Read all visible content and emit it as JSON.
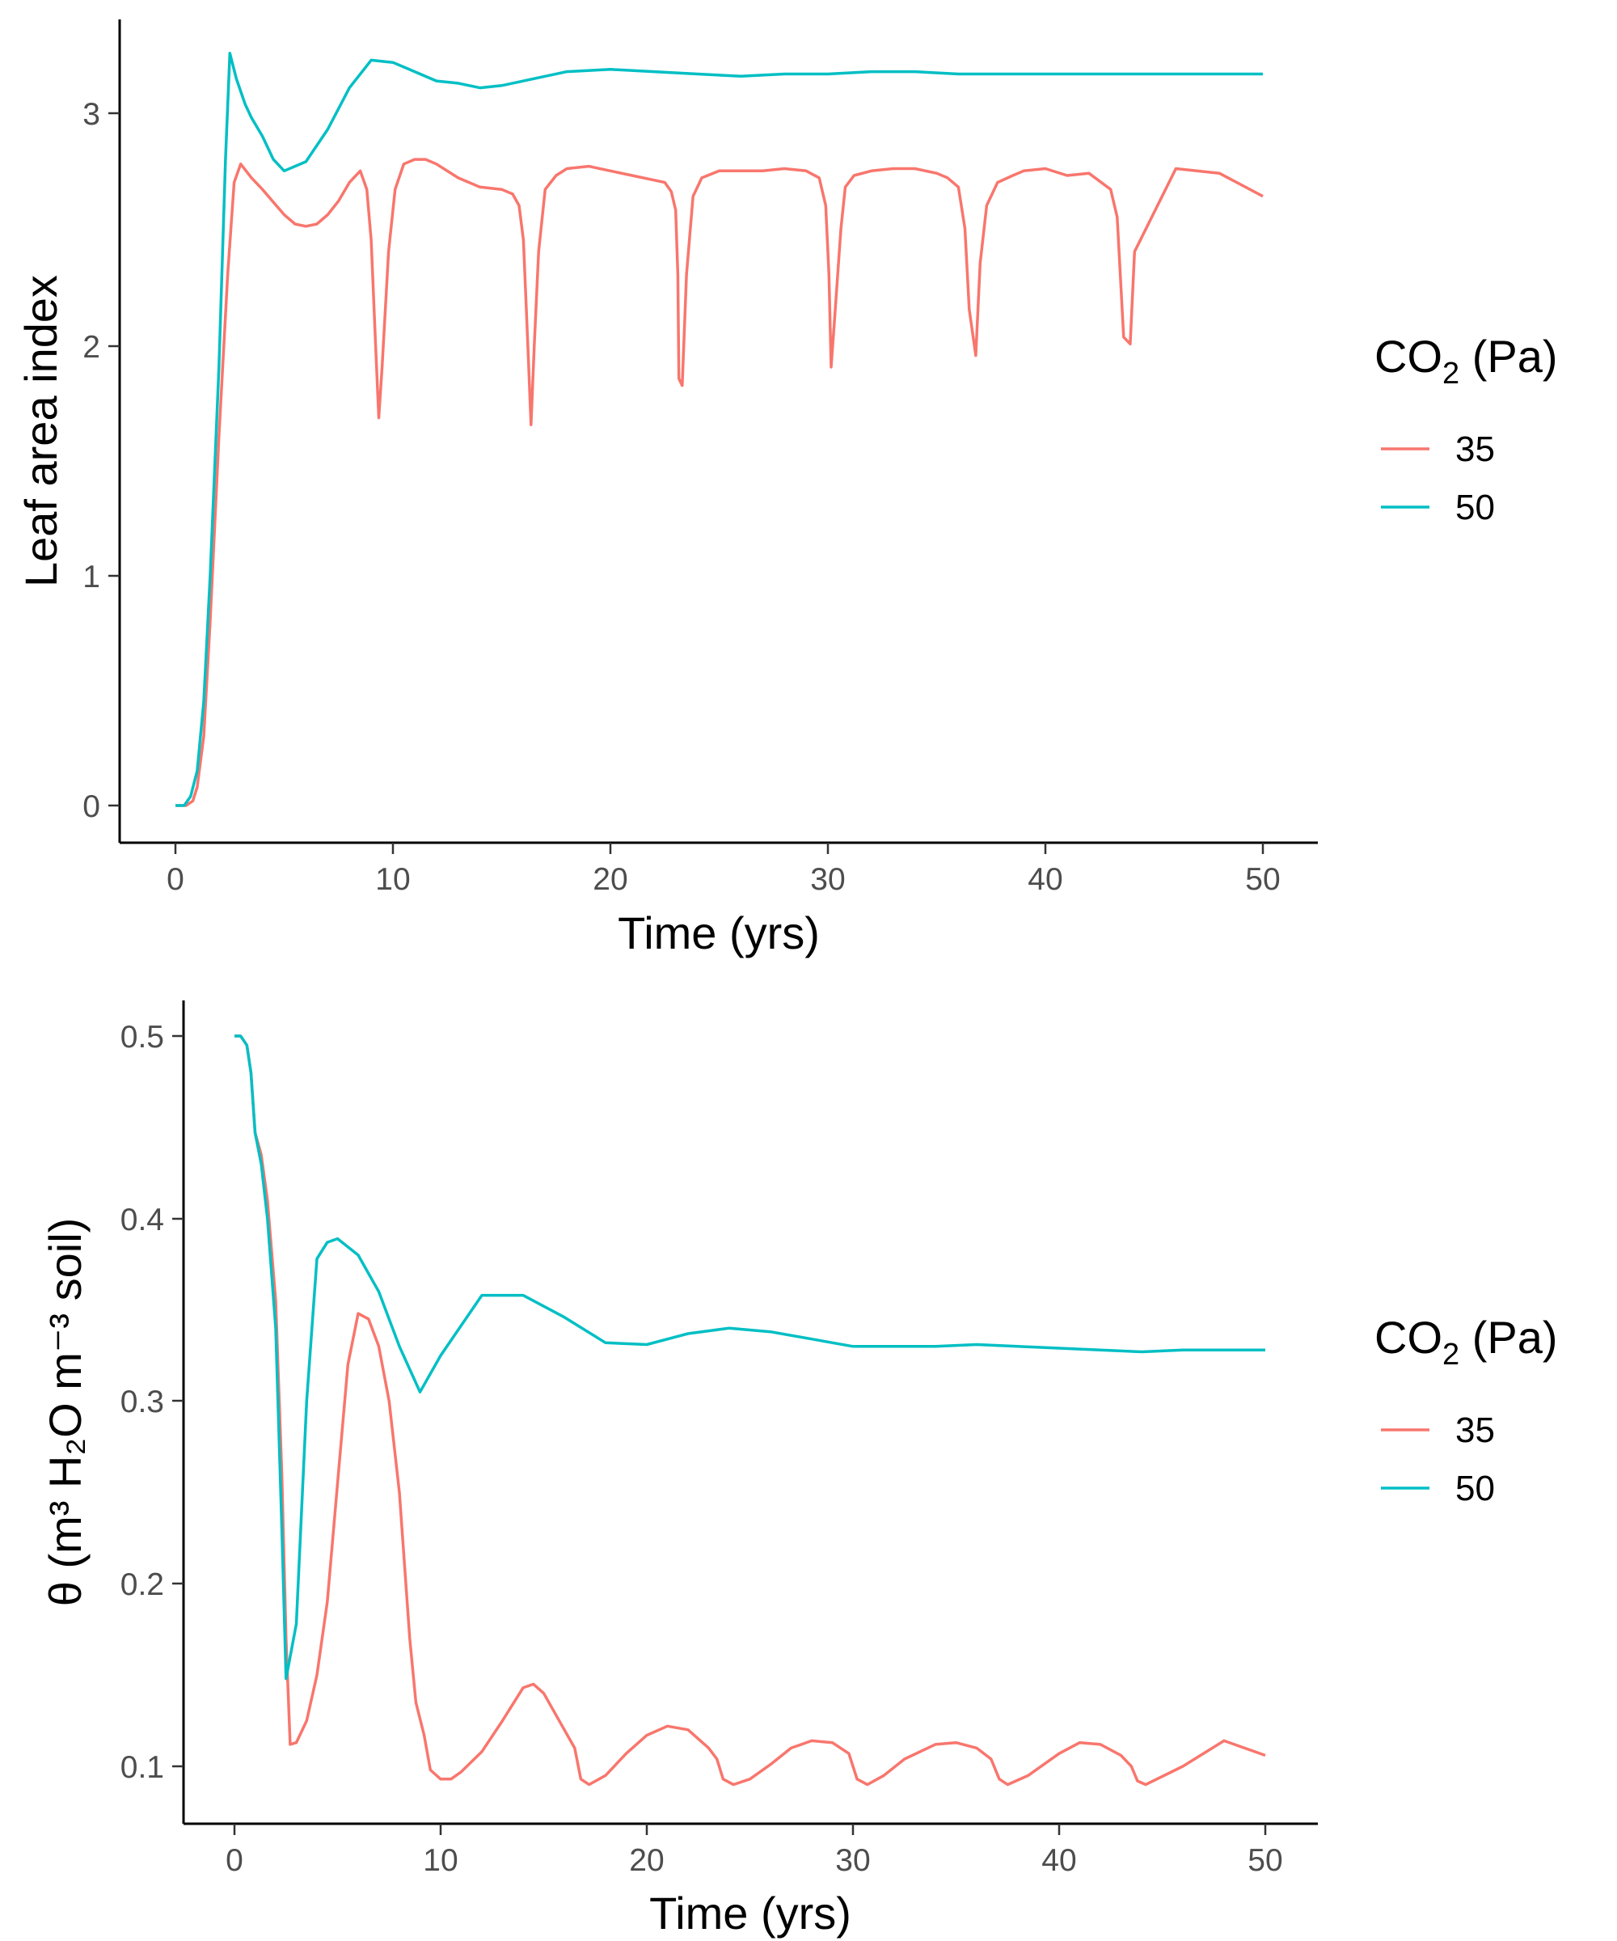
{
  "chart_data": [
    {
      "type": "line",
      "title": "",
      "xlabel": "Time (yrs)",
      "ylabel": "Leaf area index",
      "xlim": [
        -2.5,
        52.5
      ],
      "ylim": [
        -0.17,
        3.42
      ],
      "x_ticks": [
        0,
        10,
        20,
        30,
        40,
        50
      ],
      "x_tick_labels": [
        "0",
        "10",
        "20",
        "30",
        "40",
        "50"
      ],
      "y_ticks": [
        0,
        1,
        2,
        3
      ],
      "y_tick_labels": [
        "0",
        "1",
        "2",
        "3"
      ],
      "grid": false,
      "legend": {
        "position": "right",
        "title": "CO",
        "title_subscript": "2",
        "title_suffix": " (Pa)",
        "entries": [
          "35",
          "50"
        ]
      },
      "series": [
        {
          "name": "35",
          "color": "#F8766D",
          "points": [
            [
              0,
              0
            ],
            [
              0.5,
              0
            ],
            [
              0.8,
              0.02
            ],
            [
              1,
              0.08
            ],
            [
              1.3,
              0.3
            ],
            [
              1.6,
              0.8
            ],
            [
              2,
              1.6
            ],
            [
              2.4,
              2.3
            ],
            [
              2.7,
              2.7
            ],
            [
              3,
              2.78
            ],
            [
              3.5,
              2.72
            ],
            [
              4,
              2.67
            ],
            [
              5,
              2.56
            ],
            [
              5.5,
              2.52
            ],
            [
              6,
              2.51
            ],
            [
              6.5,
              2.52
            ],
            [
              7,
              2.56
            ],
            [
              7.5,
              2.62
            ],
            [
              8,
              2.7
            ],
            [
              8.5,
              2.75
            ],
            [
              8.8,
              2.67
            ],
            [
              9,
              2.45
            ],
            [
              9.2,
              2.0
            ],
            [
              9.35,
              1.68
            ],
            [
              9.5,
              1.9
            ],
            [
              9.8,
              2.4
            ],
            [
              10.1,
              2.67
            ],
            [
              10.5,
              2.78
            ],
            [
              11,
              2.8
            ],
            [
              11.5,
              2.8
            ],
            [
              12,
              2.78
            ],
            [
              13,
              2.72
            ],
            [
              14,
              2.68
            ],
            [
              15,
              2.67
            ],
            [
              15.5,
              2.65
            ],
            [
              15.8,
              2.6
            ],
            [
              16,
              2.45
            ],
            [
              16.2,
              2.0
            ],
            [
              16.35,
              1.65
            ],
            [
              16.5,
              2.0
            ],
            [
              16.7,
              2.4
            ],
            [
              17,
              2.67
            ],
            [
              17.5,
              2.73
            ],
            [
              18,
              2.76
            ],
            [
              19,
              2.77
            ],
            [
              20,
              2.75
            ],
            [
              21,
              2.73
            ],
            [
              22,
              2.71
            ],
            [
              22.5,
              2.7
            ],
            [
              22.8,
              2.66
            ],
            [
              23,
              2.58
            ],
            [
              23.1,
              2.3
            ],
            [
              23.15,
              1.85
            ],
            [
              23.3,
              1.82
            ],
            [
              23.5,
              2.3
            ],
            [
              23.8,
              2.64
            ],
            [
              24.2,
              2.72
            ],
            [
              25,
              2.75
            ],
            [
              26,
              2.75
            ],
            [
              27,
              2.75
            ],
            [
              28,
              2.76
            ],
            [
              29,
              2.75
            ],
            [
              29.6,
              2.72
            ],
            [
              29.9,
              2.6
            ],
            [
              30.05,
              2.3
            ],
            [
              30.15,
              1.9
            ],
            [
              30.3,
              2.1
            ],
            [
              30.6,
              2.5
            ],
            [
              30.8,
              2.68
            ],
            [
              31.2,
              2.73
            ],
            [
              32,
              2.75
            ],
            [
              33,
              2.76
            ],
            [
              34,
              2.76
            ],
            [
              35,
              2.74
            ],
            [
              35.5,
              2.72
            ],
            [
              36,
              2.68
            ],
            [
              36.3,
              2.5
            ],
            [
              36.5,
              2.15
            ],
            [
              36.8,
              1.95
            ],
            [
              37,
              2.35
            ],
            [
              37.3,
              2.6
            ],
            [
              37.8,
              2.7
            ],
            [
              38.5,
              2.73
            ],
            [
              39,
              2.75
            ],
            [
              40,
              2.76
            ],
            [
              41,
              2.73
            ],
            [
              42,
              2.74
            ],
            [
              43,
              2.67
            ],
            [
              43.3,
              2.55
            ],
            [
              43.5,
              2.2
            ],
            [
              43.6,
              2.03
            ],
            [
              43.9,
              2.0
            ],
            [
              44.1,
              2.4
            ],
            [
              46,
              2.76
            ],
            [
              48,
              2.74
            ],
            [
              50,
              2.64
            ]
          ]
        },
        {
          "name": "50",
          "color": "#00BFC4",
          "points": [
            [
              0,
              0
            ],
            [
              0.4,
              0
            ],
            [
              0.7,
              0.04
            ],
            [
              1,
              0.15
            ],
            [
              1.3,
              0.45
            ],
            [
              1.6,
              1.0
            ],
            [
              2,
              1.9
            ],
            [
              2.3,
              2.8
            ],
            [
              2.5,
              3.26
            ],
            [
              2.8,
              3.15
            ],
            [
              3.2,
              3.04
            ],
            [
              3.5,
              2.98
            ],
            [
              4,
              2.9
            ],
            [
              4.5,
              2.8
            ],
            [
              5,
              2.75
            ],
            [
              6,
              2.79
            ],
            [
              7,
              2.93
            ],
            [
              8,
              3.11
            ],
            [
              9,
              3.23
            ],
            [
              10,
              3.22
            ],
            [
              11,
              3.18
            ],
            [
              12,
              3.14
            ],
            [
              13,
              3.13
            ],
            [
              14,
              3.11
            ],
            [
              15,
              3.12
            ],
            [
              16,
              3.14
            ],
            [
              17,
              3.16
            ],
            [
              18,
              3.18
            ],
            [
              20,
              3.19
            ],
            [
              22,
              3.18
            ],
            [
              24,
              3.17
            ],
            [
              26,
              3.16
            ],
            [
              28,
              3.17
            ],
            [
              30,
              3.17
            ],
            [
              32,
              3.18
            ],
            [
              34,
              3.18
            ],
            [
              36,
              3.17
            ],
            [
              38,
              3.17
            ],
            [
              40,
              3.17
            ],
            [
              42,
              3.17
            ],
            [
              44,
              3.17
            ],
            [
              46,
              3.17
            ],
            [
              48,
              3.17
            ],
            [
              50,
              3.17
            ]
          ]
        }
      ]
    },
    {
      "type": "line",
      "title": "",
      "xlabel": "Time (yrs)",
      "ylabel": "θ (m³ H₂O m⁻³ soil)",
      "xlim": [
        -2.5,
        52.5
      ],
      "ylim": [
        0.066,
        0.52
      ],
      "x_ticks": [
        0,
        10,
        20,
        30,
        40,
        50
      ],
      "x_tick_labels": [
        "0",
        "10",
        "20",
        "30",
        "40",
        "50"
      ],
      "y_ticks": [
        0.1,
        0.2,
        0.3,
        0.4,
        0.5
      ],
      "y_tick_labels": [
        "0.1",
        "0.2",
        "0.3",
        "0.4",
        "0.5"
      ],
      "grid": false,
      "legend": {
        "position": "right",
        "title": "CO",
        "title_subscript": "2",
        "title_suffix": " (Pa)",
        "entries": [
          "35",
          "50"
        ]
      },
      "series": [
        {
          "name": "35",
          "color": "#F8766D",
          "points": [
            [
              0,
              0.5
            ],
            [
              0.3,
              0.5
            ],
            [
              0.6,
              0.495
            ],
            [
              0.8,
              0.48
            ],
            [
              1,
              0.447
            ],
            [
              1.3,
              0.435
            ],
            [
              1.6,
              0.41
            ],
            [
              2,
              0.355
            ],
            [
              2.3,
              0.26
            ],
            [
              2.5,
              0.17
            ],
            [
              2.7,
              0.112
            ],
            [
              3,
              0.113
            ],
            [
              3.5,
              0.125
            ],
            [
              4,
              0.15
            ],
            [
              4.5,
              0.19
            ],
            [
              5,
              0.255
            ],
            [
              5.5,
              0.32
            ],
            [
              6,
              0.348
            ],
            [
              6.5,
              0.345
            ],
            [
              7,
              0.33
            ],
            [
              7.5,
              0.3
            ],
            [
              8,
              0.25
            ],
            [
              8.5,
              0.17
            ],
            [
              8.8,
              0.135
            ],
            [
              9.2,
              0.117
            ],
            [
              9.5,
              0.098
            ],
            [
              10,
              0.093
            ],
            [
              10.5,
              0.093
            ],
            [
              11,
              0.097
            ],
            [
              12,
              0.108
            ],
            [
              13,
              0.125
            ],
            [
              14,
              0.143
            ],
            [
              14.5,
              0.145
            ],
            [
              15,
              0.14
            ],
            [
              16,
              0.12
            ],
            [
              16.5,
              0.11
            ],
            [
              16.8,
              0.093
            ],
            [
              17.2,
              0.09
            ],
            [
              18,
              0.095
            ],
            [
              19,
              0.107
            ],
            [
              20,
              0.117
            ],
            [
              21,
              0.122
            ],
            [
              22,
              0.12
            ],
            [
              23,
              0.11
            ],
            [
              23.4,
              0.104
            ],
            [
              23.7,
              0.093
            ],
            [
              24.2,
              0.09
            ],
            [
              25,
              0.093
            ],
            [
              26,
              0.101
            ],
            [
              27,
              0.11
            ],
            [
              28,
              0.114
            ],
            [
              29,
              0.113
            ],
            [
              29.8,
              0.107
            ],
            [
              30.2,
              0.093
            ],
            [
              30.7,
              0.09
            ],
            [
              31.5,
              0.095
            ],
            [
              32.5,
              0.104
            ],
            [
              34,
              0.112
            ],
            [
              35,
              0.113
            ],
            [
              36,
              0.11
            ],
            [
              36.7,
              0.104
            ],
            [
              37.1,
              0.093
            ],
            [
              37.5,
              0.09
            ],
            [
              38.5,
              0.095
            ],
            [
              40,
              0.107
            ],
            [
              41,
              0.113
            ],
            [
              42,
              0.112
            ],
            [
              43,
              0.106
            ],
            [
              43.5,
              0.1
            ],
            [
              43.8,
              0.092
            ],
            [
              44.2,
              0.09
            ],
            [
              46,
              0.1
            ],
            [
              48,
              0.114
            ],
            [
              50,
              0.106
            ]
          ]
        },
        {
          "name": "50",
          "color": "#00BFC4",
          "points": [
            [
              0,
              0.5
            ],
            [
              0.3,
              0.5
            ],
            [
              0.6,
              0.495
            ],
            [
              0.8,
              0.48
            ],
            [
              1,
              0.447
            ],
            [
              1.3,
              0.43
            ],
            [
              1.6,
              0.4
            ],
            [
              2,
              0.34
            ],
            [
              2.3,
              0.23
            ],
            [
              2.5,
              0.148
            ],
            [
              2.7,
              0.16
            ],
            [
              3,
              0.178
            ],
            [
              3.5,
              0.3
            ],
            [
              4,
              0.378
            ],
            [
              4.5,
              0.387
            ],
            [
              5,
              0.389
            ],
            [
              6,
              0.38
            ],
            [
              7,
              0.36
            ],
            [
              8,
              0.33
            ],
            [
              9,
              0.305
            ],
            [
              10,
              0.325
            ],
            [
              12,
              0.358
            ],
            [
              14,
              0.358
            ],
            [
              16,
              0.346
            ],
            [
              18,
              0.332
            ],
            [
              20,
              0.331
            ],
            [
              22,
              0.337
            ],
            [
              24,
              0.34
            ],
            [
              26,
              0.338
            ],
            [
              28,
              0.334
            ],
            [
              30,
              0.33
            ],
            [
              32,
              0.33
            ],
            [
              34,
              0.33
            ],
            [
              36,
              0.331
            ],
            [
              38,
              0.33
            ],
            [
              40,
              0.329
            ],
            [
              42,
              0.328
            ],
            [
              44,
              0.327
            ],
            [
              46,
              0.328
            ],
            [
              48,
              0.328
            ],
            [
              50,
              0.328
            ]
          ]
        }
      ]
    }
  ]
}
